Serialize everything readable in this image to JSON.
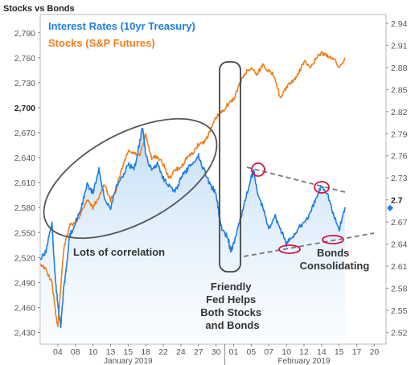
{
  "chart_data": {
    "type": "line",
    "title": "Stocks vs Bonds",
    "left_axis": {
      "ticks": [
        "2,790",
        "2,760",
        "2,730",
        "2,700",
        "2,670",
        "2,640",
        "2,610",
        "2,580",
        "2,550",
        "2,520",
        "2,490",
        "2,460",
        "2,430"
      ],
      "ylim": [
        2416,
        2812
      ],
      "emphasized": "2,700"
    },
    "right_axis": {
      "ticks": [
        "2.94",
        "2.91",
        "2.88",
        "2.85",
        "2.82",
        "2.79",
        "2.76",
        "2.73",
        "2.7",
        "2.67",
        "2.64",
        "2.61",
        "2.58",
        "2.55",
        "2.52"
      ],
      "ylim": [
        2.504,
        2.952
      ],
      "emphasized": "2.7",
      "current_marker": 2.689
    },
    "x_axis": {
      "ticks": [
        "04",
        "08",
        "10",
        "13",
        "15",
        "18",
        "22",
        "24",
        "27",
        "30",
        "01",
        "05",
        "07",
        "10",
        "12",
        "14",
        "15",
        "17",
        "20"
      ],
      "tick_days": [
        4,
        7,
        10,
        13,
        16,
        19,
        22,
        25,
        28,
        31,
        34,
        37,
        40,
        43,
        46,
        49,
        52,
        55,
        58
      ],
      "range_days": [
        1,
        60
      ],
      "months": [
        {
          "label": "January 2019",
          "center_day": 16
        },
        {
          "label": "February 2019",
          "center_day": 46
        }
      ],
      "month_break_day": 32.5
    },
    "legend": [
      {
        "label": "Interest Rates (10yr Treasury)",
        "color": "#1f7de0"
      },
      {
        "label": "Stocks (S&P Futures)",
        "color": "#f07d1a"
      }
    ],
    "series": [
      {
        "name": "Interest Rates (10yr Treasury)",
        "axis": "right",
        "color": "#1f7de0",
        "x": [
          1,
          2,
          3,
          3.5,
          4,
          4.5,
          5,
          5.5,
          6,
          7,
          8,
          9,
          10,
          11,
          12,
          13,
          14,
          15,
          16,
          17,
          18,
          18.5,
          19,
          20,
          21,
          22,
          23,
          24,
          25,
          26,
          27,
          28,
          29,
          30,
          31,
          31.5,
          32,
          33,
          33.5,
          34,
          35,
          36,
          37,
          37.5,
          38,
          39,
          40,
          41,
          42,
          43,
          44,
          45,
          46,
          47,
          48,
          49,
          50,
          51,
          52,
          53
        ],
        "y": [
          2.62,
          2.63,
          2.67,
          2.6,
          2.56,
          2.53,
          2.58,
          2.61,
          2.65,
          2.67,
          2.69,
          2.72,
          2.71,
          2.74,
          2.7,
          2.69,
          2.72,
          2.73,
          2.75,
          2.74,
          2.78,
          2.8,
          2.76,
          2.74,
          2.75,
          2.73,
          2.72,
          2.71,
          2.73,
          2.74,
          2.75,
          2.76,
          2.74,
          2.72,
          2.71,
          2.68,
          2.66,
          2.65,
          2.63,
          2.64,
          2.67,
          2.7,
          2.73,
          2.74,
          2.71,
          2.69,
          2.66,
          2.68,
          2.66,
          2.64,
          2.65,
          2.66,
          2.67,
          2.68,
          2.7,
          2.72,
          2.71,
          2.68,
          2.66,
          2.69
        ]
      },
      {
        "name": "Stocks (S&P Futures)",
        "axis": "left",
        "color": "#f07d1a",
        "x": [
          1,
          2,
          3,
          3.5,
          4,
          5,
          6,
          7,
          8,
          9,
          10,
          11,
          12,
          13,
          14,
          15,
          16,
          17,
          18,
          19,
          20,
          21,
          22,
          23,
          24,
          25,
          26,
          27,
          28,
          29,
          30,
          31,
          32,
          33,
          34,
          35,
          36,
          37,
          38,
          39,
          40,
          41,
          42,
          43,
          44,
          45,
          46,
          47,
          48,
          49,
          50,
          51,
          52,
          53
        ],
        "y": [
          2513,
          2505,
          2490,
          2460,
          2437,
          2530,
          2558,
          2561,
          2574,
          2590,
          2580,
          2593,
          2607,
          2589,
          2602,
          2628,
          2647,
          2645,
          2642,
          2667,
          2640,
          2641,
          2632,
          2615,
          2625,
          2628,
          2640,
          2645,
          2656,
          2659,
          2672,
          2688,
          2695,
          2704,
          2710,
          2728,
          2742,
          2748,
          2740,
          2752,
          2744,
          2738,
          2710,
          2725,
          2731,
          2740,
          2756,
          2748,
          2758,
          2766,
          2762,
          2760,
          2748,
          2760
        ]
      }
    ],
    "annotations": [
      {
        "text": "Lots of correlation"
      },
      {
        "text": [
          "Friendly",
          "Fed Helps",
          "Both Stocks",
          "and Bonds"
        ]
      },
      {
        "text": [
          "Bonds",
          "Consolidating"
        ]
      }
    ]
  }
}
